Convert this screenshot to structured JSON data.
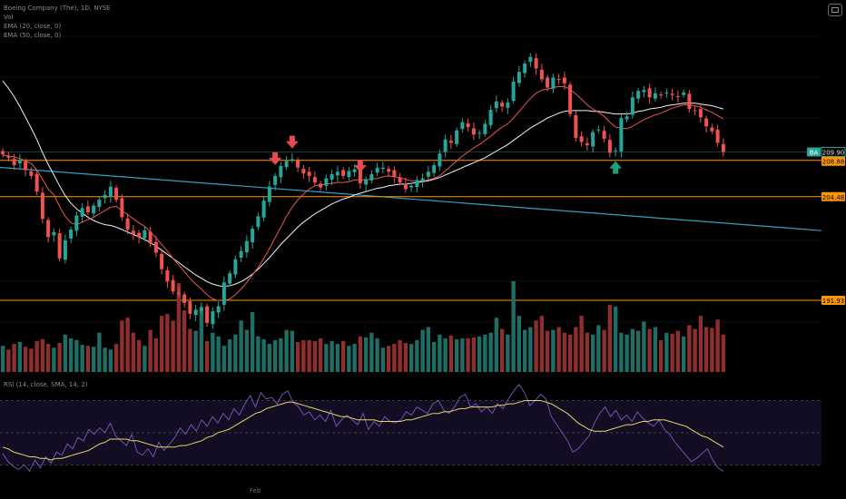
{
  "header": {
    "title": "Boeing Company (The), 1D, NYSE",
    "volume_label": "Vol",
    "ema1_label": "EMA (20, close, 0)",
    "ema2_label": "EMA (50, close, 0)",
    "rsi_label": "RSI (14, close, SMA, 14, 2)"
  },
  "colors": {
    "up": "#26a69a",
    "down": "#ef5350",
    "ema_fast": "#ef5350",
    "ema_slow": "#f2f2f2",
    "support": "#ff9800",
    "trendline": "#2fa3c2",
    "rsi": "#7e57c2",
    "rsi_ma": "#e6d36a",
    "ticker_badge": "#26a69a"
  },
  "price_tags": {
    "ticker": "BA",
    "last": "209.90",
    "support_1": "208.88",
    "support_2": "204.48",
    "support_3": "191.93"
  },
  "x_axis_labels": [
    "",
    "",
    "",
    "Feb",
    "",
    "",
    "",
    "",
    "",
    "",
    ""
  ],
  "chart_data": [
    {
      "type": "candlestick",
      "title": "Boeing Company (The), 1D, NYSE",
      "ylim": [
        186.0,
        225.0
      ],
      "closes": [
        209.6,
        209.2,
        208.3,
        208.9,
        207.7,
        207.0,
        205.1,
        201.8,
        199.6,
        200.2,
        197.0,
        199.2,
        200.5,
        202.2,
        203.1,
        202.6,
        203.4,
        204.1,
        204.7,
        205.7,
        204.1,
        202.0,
        200.5,
        199.9,
        199.6,
        200.4,
        198.8,
        197.7,
        195.7,
        194.2,
        193.0,
        192.8,
        191.6,
        190.3,
        190.8,
        191.0,
        189.2,
        190.6,
        191.2,
        194.1,
        195.2,
        196.9,
        197.9,
        199.1,
        200.6,
        202.1,
        204.0,
        205.7,
        207.0,
        208.2,
        208.8,
        209.0,
        208.0,
        207.3,
        207.0,
        206.2,
        205.6,
        206.7,
        207.2,
        207.5,
        207.0,
        207.6,
        207.8,
        206.1,
        206.6,
        207.2,
        208.0,
        208.0,
        207.5,
        206.9,
        206.2,
        205.4,
        205.8,
        206.5,
        206.7,
        207.5,
        208.3,
        209.7,
        211.4,
        211.0,
        212.5,
        213.5,
        212.9,
        212.0,
        212.2,
        213.3,
        215.0,
        216.0,
        215.4,
        215.9,
        218.4,
        219.6,
        220.6,
        221.4,
        220.0,
        218.7,
        217.7,
        218.9,
        218.7,
        218.2,
        214.5,
        211.6,
        211.1,
        210.7,
        212.3,
        212.6,
        211.5,
        209.8,
        210.1,
        214.0,
        214.2,
        216.5,
        217.3,
        217.4,
        216.5,
        217.0,
        216.8,
        217.1,
        216.8,
        216.6,
        217.1,
        215.1,
        214.9,
        214.1,
        213.0,
        212.4,
        211.0,
        209.9
      ],
      "volume": [
        28,
        24,
        30,
        32,
        27,
        25,
        33,
        35,
        30,
        26,
        31,
        40,
        36,
        34,
        29,
        28,
        27,
        42,
        26,
        24,
        30,
        55,
        58,
        42,
        34,
        28,
        45,
        36,
        60,
        62,
        55,
        95,
        66,
        46,
        44,
        70,
        33,
        42,
        38,
        28,
        35,
        40,
        55,
        45,
        64,
        38,
        35,
        30,
        34,
        36,
        45,
        44,
        32,
        34,
        34,
        33,
        36,
        30,
        33,
        30,
        33,
        28,
        30,
        38,
        37,
        42,
        36,
        26,
        28,
        30,
        34,
        31,
        30,
        34,
        45,
        48,
        32,
        40,
        36,
        39,
        35,
        36,
        36,
        37,
        38,
        40,
        42,
        58,
        46,
        40,
        97,
        60,
        45,
        48,
        55,
        60,
        44,
        45,
        48,
        42,
        40,
        48,
        60,
        42,
        40,
        50,
        45,
        72,
        70,
        42,
        40,
        46,
        44,
        54,
        46,
        48,
        34,
        42,
        41,
        44,
        38,
        50,
        46,
        60,
        48,
        47,
        56,
        40
      ],
      "ema_fast": [
        209.5,
        209.4,
        209.3,
        209.1,
        208.8,
        208.5,
        207.7,
        206.6,
        205.4,
        204.7,
        203.3,
        202.1,
        201.3,
        201.1,
        201.4,
        201.7,
        202.0,
        202.4,
        202.8,
        203.2,
        203.3,
        202.8,
        202.3,
        201.8,
        201.3,
        200.9,
        200.2,
        199.5,
        198.7,
        197.9,
        197.0,
        196.2,
        195.4,
        194.6,
        193.9,
        193.3,
        192.6,
        192.1,
        191.9,
        191.9,
        192.1,
        192.6,
        193.3,
        194.1,
        195.0,
        195.9,
        197.0,
        198.2,
        199.5,
        200.8,
        202.1,
        203.2,
        204.1,
        204.8,
        205.4,
        205.8,
        205.9,
        206.0,
        206.1,
        206.2,
        206.2,
        206.3,
        206.5,
        206.5,
        206.5,
        206.6,
        206.7,
        206.9,
        207.0,
        206.9,
        206.8,
        206.6,
        206.4,
        206.4,
        206.4,
        206.5,
        206.7,
        207.0,
        207.6,
        208.2,
        208.8,
        209.4,
        209.9,
        210.4,
        210.8,
        211.3,
        211.8,
        212.4,
        212.9,
        213.3,
        214.0,
        214.8,
        215.6,
        216.4,
        217.0,
        217.4,
        217.5,
        217.7,
        217.8,
        217.8,
        217.5,
        216.9,
        216.3,
        215.6,
        215.1,
        214.7,
        214.2,
        213.5,
        212.9,
        212.8,
        212.7,
        213.0,
        213.4,
        213.8,
        214.1,
        214.4,
        214.6,
        214.9,
        215.2,
        215.4,
        215.6,
        215.6,
        215.5,
        215.3,
        215.0,
        214.7,
        214.3,
        213.9
      ],
      "ema_slow": [
        218.5,
        217.6,
        216.6,
        215.4,
        214.1,
        212.8,
        211.4,
        209.8,
        208.4,
        207.1,
        205.8,
        204.6,
        203.7,
        203.0,
        202.5,
        202.0,
        201.6,
        201.3,
        201.1,
        201.0,
        200.8,
        200.5,
        200.2,
        199.9,
        199.6,
        199.3,
        198.9,
        198.5,
        198.0,
        197.5,
        197.0,
        196.5,
        196.0,
        195.5,
        195.0,
        194.6,
        194.2,
        193.9,
        193.7,
        193.6,
        193.7,
        193.9,
        194.2,
        194.6,
        195.1,
        195.7,
        196.4,
        197.1,
        197.9,
        198.7,
        199.4,
        200.1,
        200.8,
        201.4,
        201.9,
        202.4,
        202.8,
        203.2,
        203.6,
        203.9,
        204.2,
        204.4,
        204.7,
        204.9,
        205.1,
        205.3,
        205.5,
        205.6,
        205.8,
        205.9,
        206.0,
        206.0,
        206.1,
        206.2,
        206.3,
        206.4,
        206.6,
        206.8,
        207.1,
        207.4,
        207.7,
        208.0,
        208.3,
        208.6,
        208.9,
        209.2,
        209.6,
        210.0,
        210.4,
        210.8,
        211.3,
        211.8,
        212.3,
        212.8,
        213.2,
        213.6,
        214.0,
        214.3,
        214.6,
        214.8,
        214.9,
        214.9,
        214.9,
        214.9,
        214.8,
        214.8,
        214.7,
        214.6,
        214.5,
        214.5,
        214.5,
        214.6,
        214.8,
        214.9,
        215.1,
        215.2,
        215.3,
        215.5,
        215.6,
        215.7,
        215.8,
        215.8,
        215.8,
        215.7,
        215.6,
        215.5,
        215.3,
        215.1
      ],
      "horizontal_levels": [
        {
          "label": "208.88",
          "value": 208.88
        },
        {
          "label": "204.48",
          "value": 204.48
        },
        {
          "label": "191.93",
          "value": 191.93
        }
      ],
      "last_price": {
        "ticker": "BA",
        "value": 209.9
      },
      "trendline": {
        "start_index": 0,
        "start_value": 208.0,
        "end_index": 140,
        "end_value": 200.6
      },
      "arrows": [
        {
          "type": "sell",
          "index": 48
        },
        {
          "type": "sell",
          "index": 51
        },
        {
          "type": "sell",
          "index": 63
        },
        {
          "type": "buy",
          "index": 108
        },
        {
          "type": "buy",
          "index": 132
        }
      ]
    },
    {
      "type": "line",
      "title": "RSI (14, close, SMA, 14, 2)",
      "ylim": [
        20,
        85
      ],
      "bands": [
        70,
        50,
        30
      ],
      "rsi": [
        37,
        32,
        29,
        27,
        30,
        26,
        33,
        28,
        35,
        31,
        38,
        36,
        43,
        40,
        47,
        45,
        52,
        49,
        53,
        50,
        56,
        48,
        45,
        42,
        49,
        38,
        36,
        40,
        35,
        44,
        39,
        43,
        47,
        53,
        49,
        55,
        51,
        58,
        54,
        60,
        56,
        62,
        58,
        65,
        61,
        68,
        73,
        66,
        75,
        71,
        72,
        68,
        74,
        76,
        69,
        66,
        61,
        63,
        58,
        61,
        57,
        64,
        54,
        58,
        61,
        58,
        55,
        62,
        52,
        57,
        54,
        60,
        57,
        56,
        58,
        63,
        61,
        66,
        64,
        62,
        68,
        70,
        64,
        62,
        66,
        72,
        74,
        66,
        68,
        63,
        66,
        62,
        68,
        65,
        71,
        76,
        80,
        75,
        67,
        70,
        74,
        71,
        60,
        55,
        50,
        45,
        38,
        40,
        44,
        48,
        56,
        62,
        66,
        60,
        64,
        58,
        61,
        57,
        63,
        59,
        56,
        54,
        58,
        52,
        49,
        44,
        40,
        36,
        32,
        34,
        37,
        40,
        33,
        28,
        26
      ],
      "rsi_ma": [
        41,
        40,
        38,
        37,
        36,
        35,
        35,
        34,
        34,
        33,
        34,
        34,
        35,
        36,
        37,
        38,
        39,
        41,
        43,
        44,
        46,
        46,
        46,
        46,
        45,
        45,
        44,
        43,
        42,
        41,
        41,
        41,
        41,
        42,
        42,
        43,
        44,
        45,
        47,
        48,
        50,
        51,
        52,
        54,
        56,
        58,
        60,
        62,
        63,
        65,
        66,
        67,
        68,
        69,
        69,
        68,
        67,
        66,
        65,
        64,
        63,
        62,
        61,
        60,
        60,
        59,
        58,
        58,
        58,
        58,
        57,
        57,
        57,
        57,
        57,
        58,
        58,
        59,
        60,
        61,
        62,
        62,
        63,
        63,
        64,
        65,
        65,
        66,
        66,
        66,
        66,
        66,
        67,
        67,
        68,
        68,
        69,
        70,
        70,
        70,
        70,
        69,
        68,
        66,
        64,
        62,
        59,
        56,
        54,
        52,
        51,
        51,
        51,
        52,
        53,
        54,
        55,
        55,
        56,
        57,
        57,
        58,
        58,
        58,
        57,
        56,
        55,
        54,
        52,
        50,
        48,
        47,
        45,
        43,
        41
      ]
    }
  ]
}
